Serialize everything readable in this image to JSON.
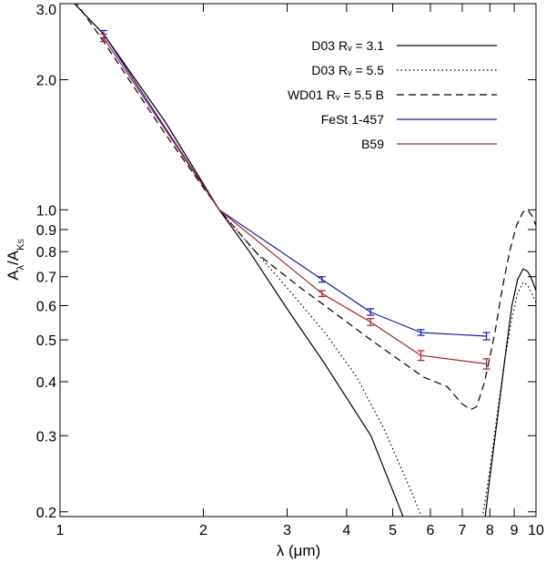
{
  "chart_data": {
    "type": "line",
    "x_scale": "log",
    "y_scale": "log",
    "xlabel": "λ (μm)",
    "ylabel_main": "A",
    "ylabel_main_sub": "λ",
    "ylabel_den": "/A",
    "ylabel_den_sub": "K",
    "ylabel_den_subsub": "S",
    "xlim": [
      1,
      10
    ],
    "ylim": [
      0.195,
      3.0
    ],
    "x_ticks": [
      1,
      2,
      3,
      4,
      5,
      6,
      7,
      8,
      9,
      10
    ],
    "x_tick_labels": [
      "1",
      "2",
      "3",
      "4",
      "5",
      "6",
      "7",
      "8",
      "9",
      "10"
    ],
    "y_ticks": [
      0.2,
      0.3,
      0.4,
      0.5,
      0.6,
      0.7,
      0.8,
      0.9,
      1.0,
      2.0,
      3.0
    ],
    "y_tick_labels": [
      "0.2",
      "0.3",
      "0.4",
      "0.5",
      "0.6",
      "0.7",
      "0.8",
      "0.9",
      "1.0",
      "2.0",
      "3.0"
    ],
    "legend": [
      {
        "label": "D03 Rᵥ = 3.1",
        "color": "#000000",
        "dash": "solid"
      },
      {
        "label": "D03 Rᵥ = 5.5",
        "color": "#000000",
        "dash": "dotted"
      },
      {
        "label": "WD01 Rᵥ = 5.5 B",
        "color": "#000000",
        "dash": "dashed"
      },
      {
        "label": "FeSt 1-457",
        "color": "#1a1aaa",
        "dash": "solid"
      },
      {
        "label": "B59",
        "color": "#b02020",
        "dash": "solid"
      }
    ],
    "series": [
      {
        "name": "D03 Rv = 3.1",
        "color": "#000000",
        "dash": "solid",
        "x": [
          1.0,
          1.235,
          1.662,
          2.16,
          2.5,
          3.0,
          3.6,
          4.5,
          5.21,
          5.3
        ],
        "y": [
          3.25,
          2.55,
          1.6,
          1.0,
          0.8,
          0.59,
          0.44,
          0.3,
          0.2,
          0.19
        ],
        "x2": [
          7.8,
          8.0,
          8.3,
          8.6,
          8.9,
          9.15,
          9.4,
          9.6,
          9.75,
          9.9,
          10.0
        ],
        "y2": [
          0.19,
          0.24,
          0.33,
          0.45,
          0.6,
          0.69,
          0.73,
          0.72,
          0.7,
          0.67,
          0.65
        ]
      },
      {
        "name": "D03 Rv = 5.5",
        "color": "#000000",
        "dash": "dotted",
        "x": [
          1.0,
          1.235,
          1.662,
          2.16,
          2.5,
          3.0,
          3.6,
          4.2,
          4.8,
          5.5,
          5.8
        ],
        "y": [
          3.25,
          2.55,
          1.6,
          1.0,
          0.83,
          0.66,
          0.52,
          0.41,
          0.31,
          0.22,
          0.19
        ],
        "x2": [
          7.7,
          8.0,
          8.3,
          8.6,
          8.9,
          9.15,
          9.4,
          9.6,
          9.8,
          10.0
        ],
        "y2": [
          0.19,
          0.25,
          0.34,
          0.45,
          0.56,
          0.64,
          0.68,
          0.67,
          0.64,
          0.61
        ]
      },
      {
        "name": "WD01 Rv = 5.5 B",
        "color": "#000000",
        "dash": "dashed",
        "x": [
          1.0,
          1.235,
          1.662,
          2.16,
          2.6,
          3.2,
          3.6,
          4.5,
          5.3,
          5.8,
          6.5,
          7.0,
          7.3,
          7.5,
          7.8,
          8.2,
          8.5,
          8.8,
          9.1,
          9.4,
          9.6,
          9.8,
          10.0
        ],
        "y": [
          3.4,
          2.45,
          1.5,
          1.0,
          0.79,
          0.66,
          0.6,
          0.5,
          0.44,
          0.41,
          0.39,
          0.355,
          0.345,
          0.35,
          0.4,
          0.52,
          0.66,
          0.8,
          0.92,
          0.99,
          1.0,
          0.97,
          0.92
        ]
      },
      {
        "name": "FeSt 1-457",
        "color": "#1a1aaa",
        "dash": "solid",
        "x": [
          1.235,
          2.16,
          3.55,
          4.49,
          5.73,
          7.87
        ],
        "y": [
          2.55,
          1.0,
          0.69,
          0.58,
          0.52,
          0.51
        ],
        "err": [
          0.05,
          0.0,
          0.01,
          0.01,
          0.008,
          0.01
        ]
      },
      {
        "name": "B59",
        "color": "#b02020",
        "dash": "solid",
        "x": [
          1.235,
          2.16,
          3.55,
          4.49,
          5.73,
          7.87
        ],
        "y": [
          2.5,
          1.0,
          0.64,
          0.55,
          0.46,
          0.44
        ],
        "err": [
          0.05,
          0.0,
          0.01,
          0.01,
          0.012,
          0.012
        ]
      }
    ]
  }
}
